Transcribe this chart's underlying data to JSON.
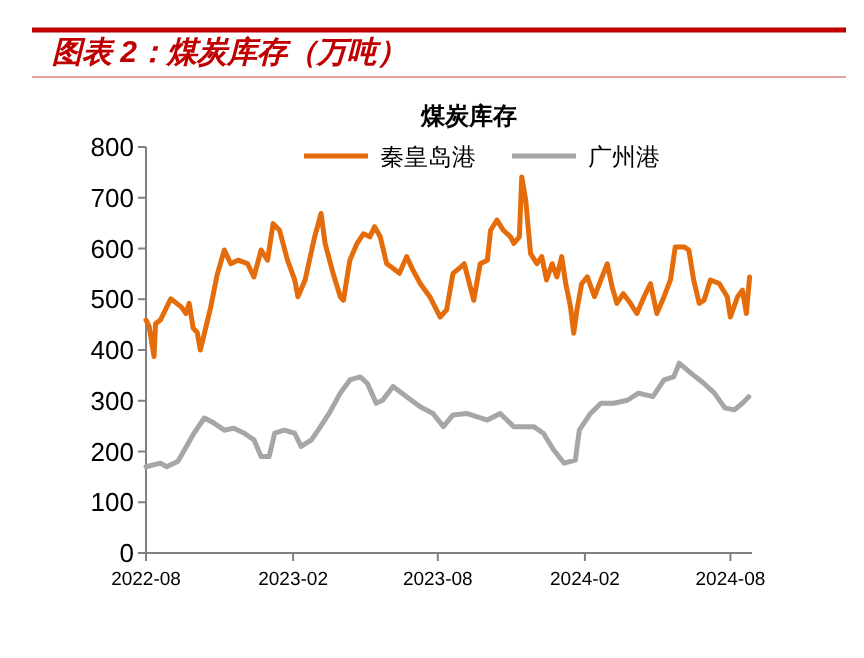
{
  "chart_data": {
    "type": "line",
    "title": "图表 2：煤炭库存（万吨）",
    "subtitle": "煤炭库存",
    "legend": "top",
    "grid": false,
    "marker": "none",
    "line_style": "solid",
    "xlim": [
      "2022-08-01",
      "2024-08-28"
    ],
    "xticks": [
      {
        "value": "2022-08-01",
        "label": "2022-08"
      },
      {
        "value": "2023-02-01",
        "label": "2023-02"
      },
      {
        "value": "2023-08-01",
        "label": "2023-08"
      },
      {
        "value": "2024-02-01",
        "label": "2024-02"
      },
      {
        "value": "2024-08-01",
        "label": "2024-08"
      }
    ],
    "ylim": [
      0,
      800
    ],
    "yticks": [
      0,
      100,
      200,
      300,
      400,
      500,
      600,
      700,
      800
    ],
    "series": [
      {
        "name": "秦皇岛港",
        "color": "#e46c0a",
        "x": [
          "2022-08-01",
          "2022-08-05",
          "2022-08-11",
          "2022-08-13",
          "2022-08-19",
          "2022-09-01",
          "2022-09-14",
          "2022-09-20",
          "2022-09-24",
          "2022-09-29",
          "2022-10-04",
          "2022-10-08",
          "2022-10-12",
          "2022-10-21",
          "2022-10-29",
          "2022-11-07",
          "2022-11-15",
          "2022-11-24",
          "2022-12-06",
          "2022-12-14",
          "2022-12-23",
          "2022-12-31",
          "2023-01-07",
          "2023-01-15",
          "2023-01-25",
          "2023-02-03",
          "2023-02-07",
          "2023-02-16",
          "2023-02-28",
          "2023-03-08",
          "2023-03-13",
          "2023-03-23",
          "2023-04-01",
          "2023-04-05",
          "2023-04-13",
          "2023-04-22",
          "2023-04-30",
          "2023-05-08",
          "2023-05-14",
          "2023-05-21",
          "2023-05-29",
          "2023-06-06",
          "2023-06-14",
          "2023-06-23",
          "2023-07-01",
          "2023-07-10",
          "2023-07-22",
          "2023-08-04",
          "2023-08-12",
          "2023-08-20",
          "2023-08-28",
          "2023-09-03",
          "2023-09-15",
          "2023-09-23",
          "2023-10-02",
          "2023-10-06",
          "2023-10-14",
          "2023-10-22",
          "2023-10-31",
          "2023-11-04",
          "2023-11-11",
          "2023-11-14",
          "2023-11-19",
          "2023-11-25",
          "2023-12-03",
          "2023-12-09",
          "2023-12-15",
          "2023-12-22",
          "2023-12-28",
          "2024-01-03",
          "2024-01-08",
          "2024-01-14",
          "2024-01-18",
          "2024-01-22",
          "2024-01-28",
          "2024-02-04",
          "2024-02-13",
          "2024-02-21",
          "2024-02-29",
          "2024-03-06",
          "2024-03-12",
          "2024-03-20",
          "2024-03-29",
          "2024-04-06",
          "2024-04-15",
          "2024-04-23",
          "2024-05-01",
          "2024-05-10",
          "2024-05-18",
          "2024-05-24",
          "2024-06-04",
          "2024-06-10",
          "2024-06-16",
          "2024-06-23",
          "2024-06-29",
          "2024-07-07",
          "2024-07-18",
          "2024-07-28",
          "2024-08-01",
          "2024-08-10",
          "2024-08-16",
          "2024-08-21",
          "2024-08-25"
        ],
        "values": [
          459,
          446,
          387,
          452,
          459,
          501,
          485,
          472,
          492,
          443,
          435,
          400,
          426,
          485,
          548,
          597,
          570,
          577,
          570,
          544,
          597,
          577,
          649,
          636,
          577,
          538,
          505,
          538,
          623,
          669,
          610,
          551,
          505,
          498,
          577,
          610,
          629,
          623,
          643,
          623,
          570,
          561,
          551,
          584,
          557,
          531,
          505,
          465,
          479,
          551,
          561,
          570,
          498,
          570,
          577,
          636,
          656,
          636,
          623,
          610,
          623,
          741,
          695,
          590,
          570,
          584,
          538,
          570,
          544,
          584,
          531,
          485,
          433,
          479,
          531,
          544,
          505,
          538,
          570,
          524,
          492,
          511,
          492,
          472,
          505,
          531,
          472,
          505,
          538,
          603,
          603,
          597,
          538,
          492,
          498,
          538,
          531,
          505,
          465,
          505,
          518,
          472,
          544
        ]
      },
      {
        "name": "广州港",
        "color": "#a6a6a6",
        "x": [
          "2022-08-01",
          "2022-08-19",
          "2022-08-27",
          "2022-09-10",
          "2022-09-18",
          "2022-09-30",
          "2022-10-13",
          "2022-10-25",
          "2022-11-07",
          "2022-11-19",
          "2022-12-02",
          "2022-12-14",
          "2022-12-23",
          "2023-01-02",
          "2023-01-09",
          "2023-01-21",
          "2023-02-03",
          "2023-02-11",
          "2023-02-24",
          "2023-03-06",
          "2023-03-18",
          "2023-04-01",
          "2023-04-13",
          "2023-04-26",
          "2023-05-05",
          "2023-05-16",
          "2023-05-24",
          "2023-06-06",
          "2023-06-23",
          "2023-07-10",
          "2023-07-26",
          "2023-08-08",
          "2023-08-20",
          "2023-09-06",
          "2023-10-02",
          "2023-10-18",
          "2023-11-04",
          "2023-11-29",
          "2023-12-11",
          "2023-12-24",
          "2024-01-06",
          "2024-01-20",
          "2024-01-25",
          "2024-02-08",
          "2024-02-21",
          "2024-03-08",
          "2024-03-25",
          "2024-04-08",
          "2024-04-26",
          "2024-05-10",
          "2024-05-22",
          "2024-05-29",
          "2024-06-13",
          "2024-06-29",
          "2024-07-12",
          "2024-07-25",
          "2024-08-06",
          "2024-08-16",
          "2024-08-24"
        ],
        "values": [
          170,
          177,
          170,
          181,
          203,
          236,
          266,
          256,
          242,
          246,
          236,
          223,
          190,
          190,
          236,
          242,
          236,
          210,
          223,
          246,
          275,
          315,
          341,
          347,
          334,
          295,
          301,
          328,
          308,
          288,
          275,
          249,
          272,
          275,
          262,
          275,
          249,
          249,
          236,
          203,
          177,
          183,
          242,
          275,
          295,
          295,
          301,
          315,
          308,
          341,
          347,
          374,
          354,
          334,
          315,
          286,
          282,
          295,
          308
        ]
      }
    ]
  }
}
